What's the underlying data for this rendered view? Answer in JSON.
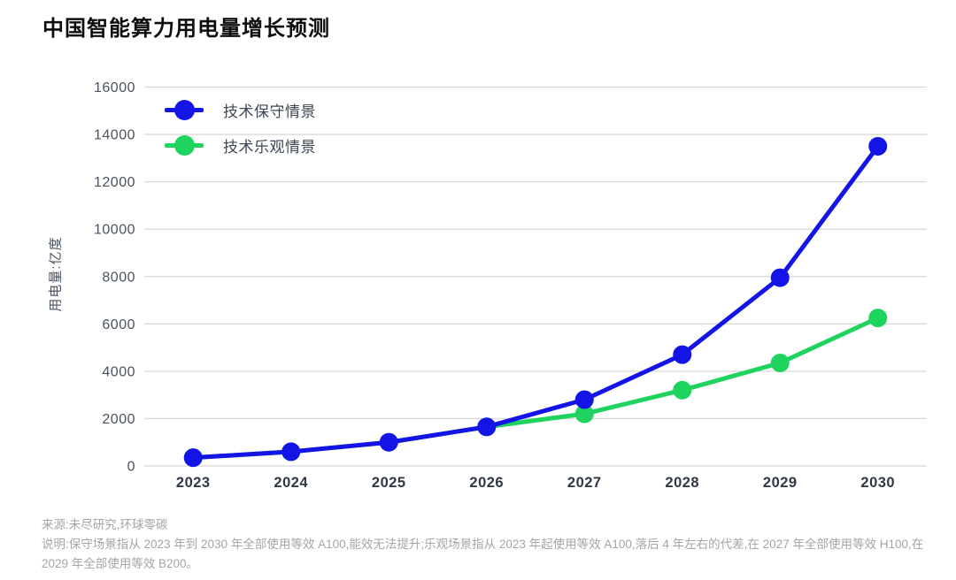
{
  "title": "中国智能算力用电量增长预测",
  "legend": [
    {
      "label": "技术保守情景",
      "color": "#1414e6"
    },
    {
      "label": "技术乐观情景",
      "color": "#1ed45f"
    }
  ],
  "chart_data": {
    "type": "line",
    "title": "中国智能算力用电量增长预测",
    "categories": [
      "2023",
      "2024",
      "2025",
      "2026",
      "2027",
      "2028",
      "2029",
      "2030"
    ],
    "series": [
      {
        "name": "技术保守情景",
        "color": "#1414e6",
        "values": [
          350,
          600,
          1000,
          1650,
          2800,
          4700,
          7950,
          13500
        ]
      },
      {
        "name": "技术乐观情景",
        "color": "#1ed45f",
        "values": [
          350,
          600,
          1000,
          1650,
          2200,
          3200,
          4350,
          6250
        ]
      }
    ],
    "xlabel": "",
    "ylabel": "用电量:亿度",
    "ylim": [
      0,
      16000
    ],
    "ytick_step": 2000,
    "yticks": [
      0,
      2000,
      4000,
      6000,
      8000,
      10000,
      12000,
      14000,
      16000
    ],
    "grid": true,
    "legend_position": "top-left"
  },
  "footnotes": {
    "source": "来源:未尽研究,环球零碳",
    "note": "说明:保守场景指从 2023 年到 2030 年全部使用等效 A100,能效无法提升;乐观场景指从 2023 年起使用等效 A100,落后 4 年左右的代差,在 2027 年全部使用等效 H100,在 2029 年全部使用等效 B200。"
  },
  "colors": {
    "grid_line": "#d8d8d8",
    "y_tick_label": "#4a5260",
    "x_tick_label": "#303846",
    "title_text": "#0d0d0d",
    "footnote_text": "#a5a5a5"
  }
}
